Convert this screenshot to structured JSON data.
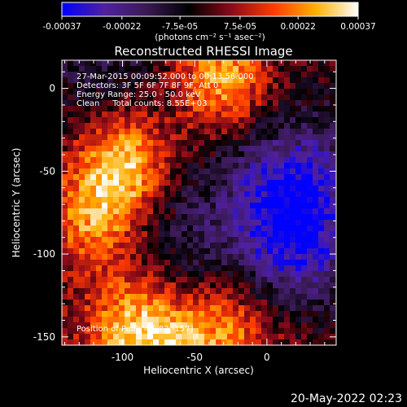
{
  "chart_data": {
    "type": "heatmap",
    "title": "Reconstructed RHESSI Image",
    "xlabel": "Heliocentric X (arcsec)",
    "ylabel": "Heliocentric Y (arcsec)",
    "xlim": [
      -142,
      48
    ],
    "ylim": [
      -155,
      17
    ],
    "x_ticks": [
      -100,
      -50,
      0
    ],
    "y_ticks": [
      0,
      -50,
      -100,
      -150
    ],
    "annotations": [
      "27-Mar-2015 00:09:52.000 to 00:13:56.000",
      "Detectors: 3F 5F 6F 7F 8F 9F, Att 0",
      "Energy Range: 25.0 - 50.0 keV",
      "Clean     Total counts: 8.55E+03"
    ],
    "peak_label": "Position of Peak = [-82,-157]",
    "peak_position": [
      -82,
      -157
    ],
    "colorbar": {
      "ticks": [
        "-0.00037",
        "-0.00022",
        "-7.5e-05",
        "7.5e-05",
        "0.00022",
        "0.00037"
      ],
      "tick_values": [
        -0.00037,
        -0.00022,
        -7.5e-05,
        7.5e-05,
        0.00022,
        0.00037
      ],
      "range": [
        -0.00037,
        0.00037
      ],
      "units_label": "(photons cm⁻² s⁻¹ asec⁻²)",
      "colormap": [
        "#0000ff",
        "#5020a0",
        "#3a1a55",
        "#000000",
        "#8a0a1a",
        "#ff3a00",
        "#ffb000",
        "#ffffff"
      ]
    },
    "emission_regions": [
      {
        "x": -100,
        "y": -45,
        "intensity": 0.00032
      },
      {
        "x": -30,
        "y": 5,
        "intensity": 0.00028
      },
      {
        "x": -120,
        "y": -80,
        "intensity": 0.00022
      },
      {
        "x": -95,
        "y": -145,
        "intensity": 0.00026
      },
      {
        "x": -60,
        "y": -155,
        "intensity": 0.00022
      },
      {
        "x": -20,
        "y": -145,
        "intensity": 0.00018
      },
      {
        "x": 10,
        "y": -25,
        "intensity": 0.00012
      },
      {
        "x": 20,
        "y": -90,
        "intensity": -0.00033
      },
      {
        "x": 15,
        "y": -40,
        "intensity": -0.00028
      },
      {
        "x": -55,
        "y": -85,
        "intensity": -0.00012
      },
      {
        "x": -115,
        "y": 10,
        "intensity": -0.00012
      }
    ]
  },
  "footer_timestamp": "20-May-2022 02:23"
}
